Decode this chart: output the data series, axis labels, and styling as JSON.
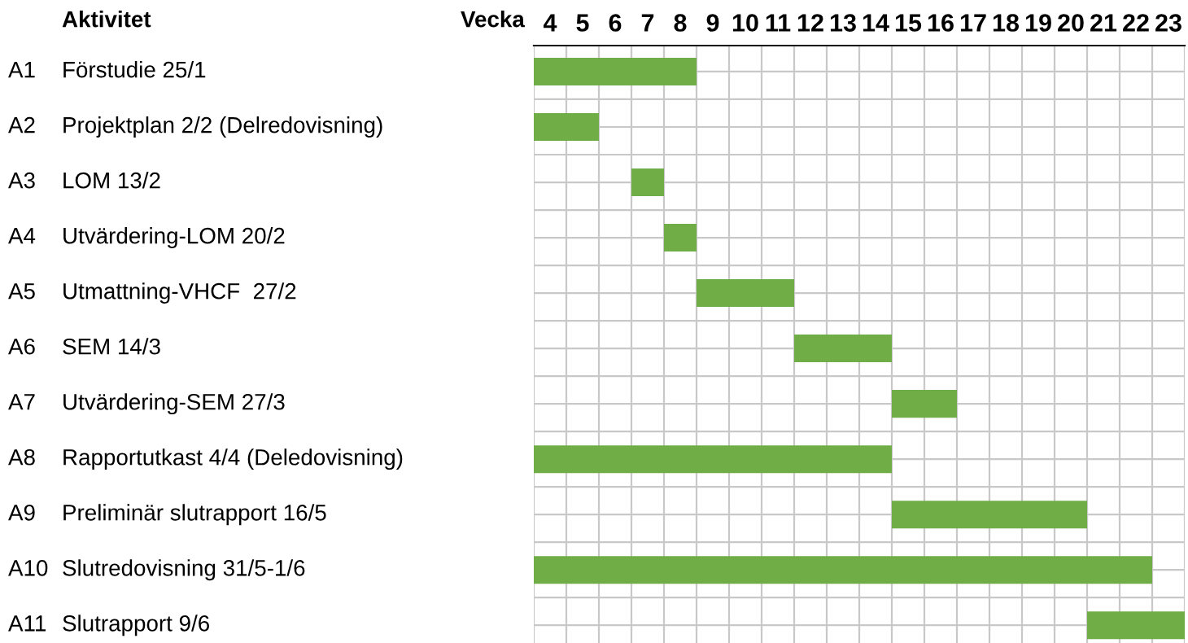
{
  "chart_data": {
    "type": "bar",
    "orientation": "horizontal",
    "ylabel": "Aktivitet",
    "xlabel": "Vecka",
    "categories": [
      "Förstudie 25/1",
      "Projektplan 2/2 (Delredovisning)",
      "LOM 13/2",
      "Utvärdering-LOM 20/2",
      "Utmattning-VHCF  27/2",
      "SEM 14/3",
      "Utvärdering-SEM 27/3",
      "Rapportutkast 4/4 (Deledovisning)",
      "Preliminär slutrapport 16/5",
      "Slutredovisning 31/5-1/6",
      "Slutrapport 9/6"
    ],
    "base": [
      3.5,
      3.5,
      6.5,
      7.5,
      8.5,
      11.5,
      14.5,
      3.5,
      14.5,
      3.5,
      20.5
    ],
    "values": [
      5,
      2,
      1,
      1,
      3,
      3,
      2,
      11,
      6,
      19,
      3
    ],
    "color": "#70ad47",
    "annotations": [
      "A1",
      "A2",
      "A3",
      "A4",
      "A5",
      "A6",
      "A7",
      "A8",
      "A9",
      "A10",
      "A11"
    ],
    "xlim": [
      3.5,
      23.5
    ],
    "xticks": [
      4,
      5,
      6,
      7,
      8,
      9,
      10,
      11,
      12,
      13,
      14,
      15,
      16,
      17,
      18,
      19,
      20,
      21,
      22,
      23
    ],
    "grid": true
  }
}
